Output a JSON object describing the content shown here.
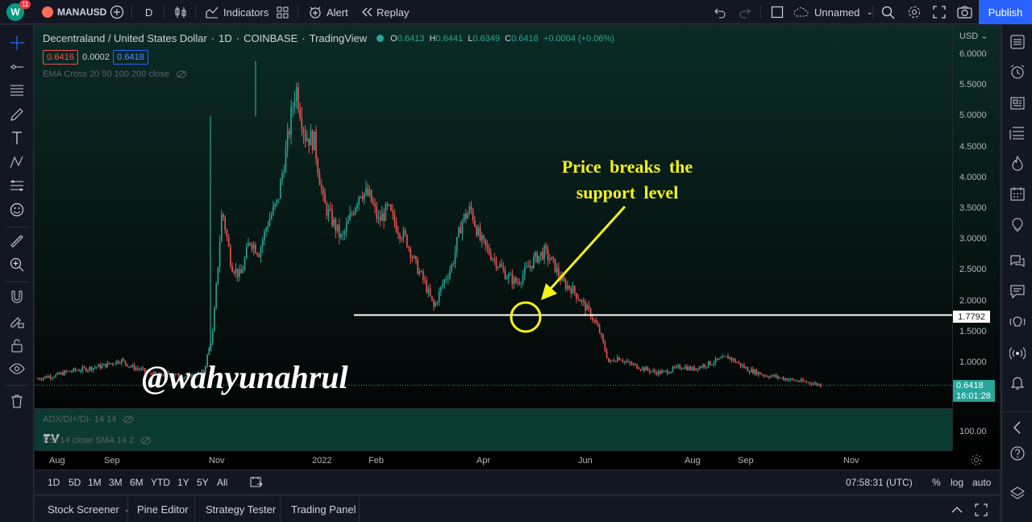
{
  "topbar": {
    "avatar_letter": "W",
    "notif_count": "11",
    "symbol": "MANAUSD",
    "interval": "D",
    "indicators_label": "Indicators",
    "alert_label": "Alert",
    "replay_label": "Replay",
    "layout_name": "Unnamed",
    "publish_label": "Publish"
  },
  "legend": {
    "title": "Decentraland / United States Dollar",
    "interval": "1D",
    "exchange": "COINBASE",
    "source": "TradingView",
    "o_label": "O",
    "o": "0.6413",
    "h_label": "H",
    "h": "0.6441",
    "l_label": "L",
    "l": "0.6349",
    "c_label": "C",
    "c": "0.6418",
    "change": "+0.0004 (+0.06%)",
    "sell": "0.6416",
    "spread": "0.0002",
    "buy": "0.6418",
    "ema": "EMA Cross 20 50 100 200 close",
    "adx": "ADX/DI+/DI- 14 14",
    "rsi": "RSI 14 close SMA 14 2"
  },
  "price_scale": {
    "currency": "USD",
    "ticks": [
      "6.0000",
      "5.5000",
      "5.0000",
      "4.5000",
      "4.0000",
      "3.5000",
      "3.0000",
      "2.5000",
      "2.0000",
      "1.5000",
      "1.0000"
    ],
    "support_label": "1.7792",
    "last_price": "0.6418",
    "countdown": "16:01:28",
    "rsi_tick": "100.00"
  },
  "time_axis": [
    "Aug",
    "Sep",
    "Nov",
    "2022",
    "Feb",
    "Apr",
    "Jun",
    "Aug",
    "Sep",
    "Nov"
  ],
  "annotation": {
    "line1": "Price breaks the",
    "line2": "support level",
    "watermark": "@wahyunahrul"
  },
  "bottom": {
    "ranges": [
      "1D",
      "5D",
      "1M",
      "3M",
      "6M",
      "YTD",
      "1Y",
      "5Y",
      "All"
    ],
    "clock": "07:58:31 (UTC)",
    "pct": "%",
    "log": "log",
    "auto": "auto"
  },
  "panel_tabs": [
    "Stock Screener",
    "Pine Editor",
    "Strategy Tester",
    "Trading Panel"
  ],
  "colors": {
    "up": "#26a69a",
    "down": "#ef5350",
    "accent": "#2962ff",
    "annotation": "#f5f21a"
  },
  "chart_data": {
    "type": "candlestick",
    "title": "Decentraland / United States Dollar",
    "x_ticks": [
      "Aug",
      "Sep",
      "Nov",
      "2022",
      "Feb",
      "Apr",
      "Jun",
      "Aug",
      "Sep",
      "Nov"
    ],
    "ylim": [
      0.5,
      6.0
    ],
    "support_level": 1.7792,
    "closes": [
      0.75,
      0.78,
      0.8,
      0.85,
      0.88,
      0.9,
      0.93,
      0.95,
      1.0,
      1.05,
      0.95,
      0.9,
      0.85,
      0.8,
      0.82,
      0.8,
      0.78,
      0.8,
      0.85,
      1.5,
      3.5,
      2.6,
      2.4,
      3.0,
      2.8,
      3.3,
      3.6,
      4.5,
      5.5,
      4.7,
      4.6,
      3.6,
      3.3,
      3.0,
      3.4,
      3.8,
      3.7,
      3.3,
      3.5,
      3.2,
      3.0,
      2.6,
      2.3,
      1.9,
      2.3,
      2.6,
      3.3,
      3.5,
      3.0,
      2.8,
      2.6,
      2.4,
      2.3,
      2.5,
      2.7,
      2.8,
      2.6,
      2.3,
      2.2,
      2.0,
      1.8,
      1.5,
      1.0,
      1.1,
      1.0,
      0.95,
      0.9,
      0.85,
      0.85,
      0.9,
      0.95,
      0.9,
      0.95,
      1.0,
      1.05,
      1.1,
      1.0,
      0.9,
      0.85,
      0.8,
      0.78,
      0.75,
      0.72,
      0.7,
      0.68,
      0.64
    ]
  }
}
